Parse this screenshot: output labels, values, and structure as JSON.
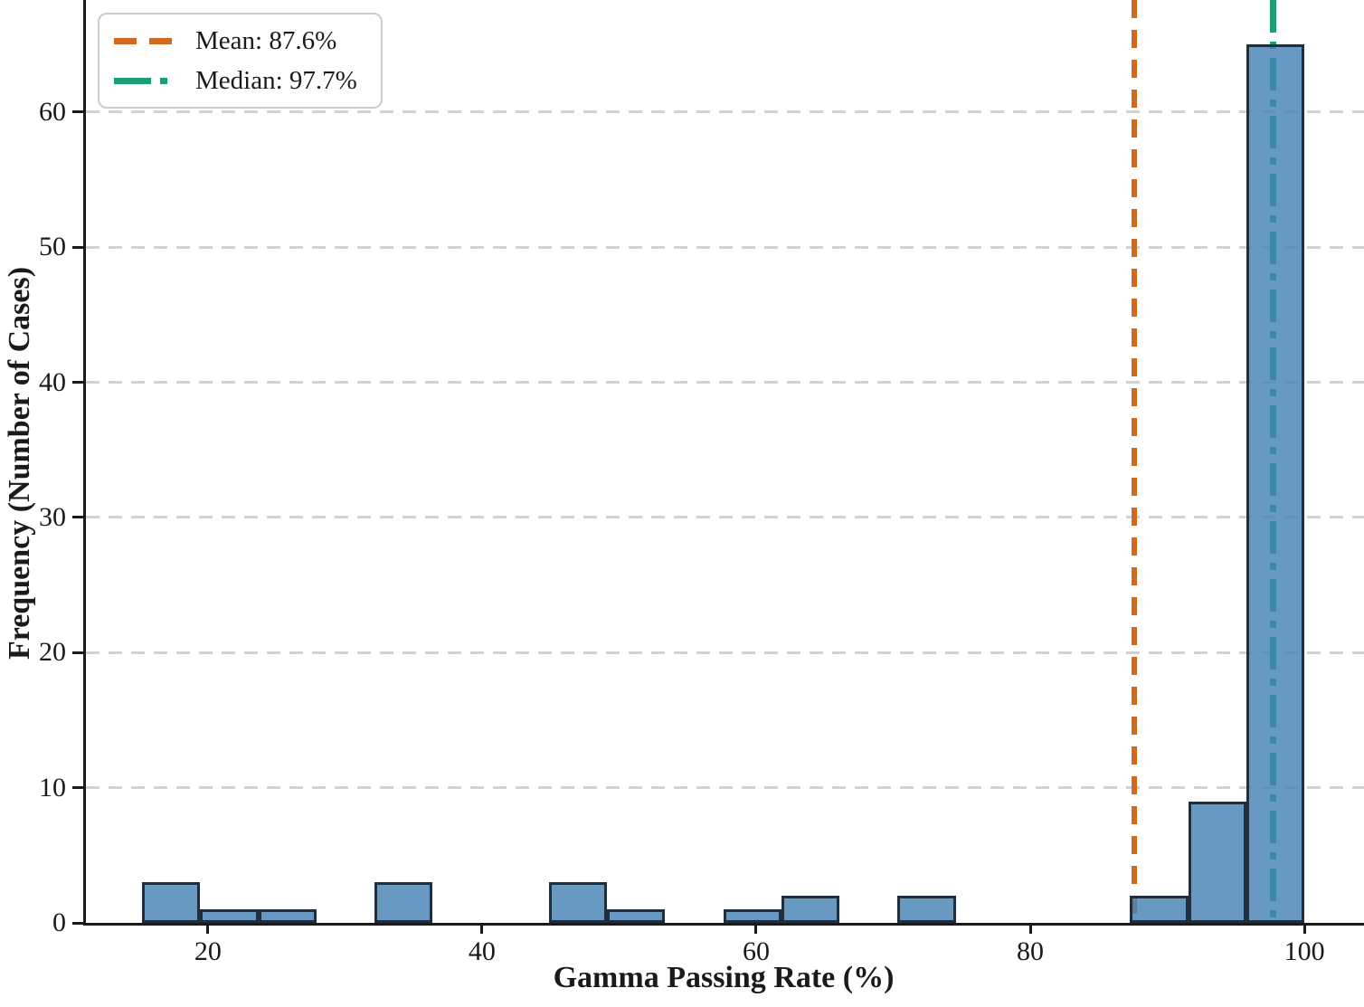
{
  "chart_data": {
    "type": "bar",
    "variant": "histogram",
    "title": "",
    "xlabel": "Gamma Passing Rate (%)",
    "ylabel": "Frequency (Number of Cases)",
    "bin_edges": [
      15.2,
      19.44,
      23.68,
      27.92,
      32.16,
      36.4,
      40.64,
      44.88,
      49.12,
      53.36,
      57.6,
      61.84,
      66.08,
      70.32,
      74.56,
      78.8,
      83.04,
      87.28,
      91.52,
      95.76,
      100.0
    ],
    "counts": [
      3,
      1,
      1,
      0,
      3,
      0,
      0,
      3,
      1,
      0,
      1,
      2,
      0,
      2,
      0,
      0,
      0,
      2,
      9,
      65
    ],
    "total_cases": 93,
    "xticks": [
      20,
      40,
      60,
      80,
      100
    ],
    "yticks": [
      0,
      10,
      20,
      30,
      40,
      50,
      60
    ],
    "xlim": [
      11.1,
      104.35
    ],
    "ylim": [
      0,
      68.3
    ],
    "grid": "horizontal-dashed",
    "legend_position": "upper-left",
    "mean": {
      "value": 87.6,
      "label": "Mean: 87.6%"
    },
    "median": {
      "value": 97.7,
      "label": "Median: 97.7%"
    },
    "colors": {
      "bar_fill": "#4682b4",
      "bar_fill_alpha": 0.82,
      "bar_edge": "#1f2d3d",
      "mean_line": "#d2691e",
      "median_line": "#1b9e77",
      "gridline": "#d2d2d2",
      "axis": "#1a1a1a"
    }
  }
}
